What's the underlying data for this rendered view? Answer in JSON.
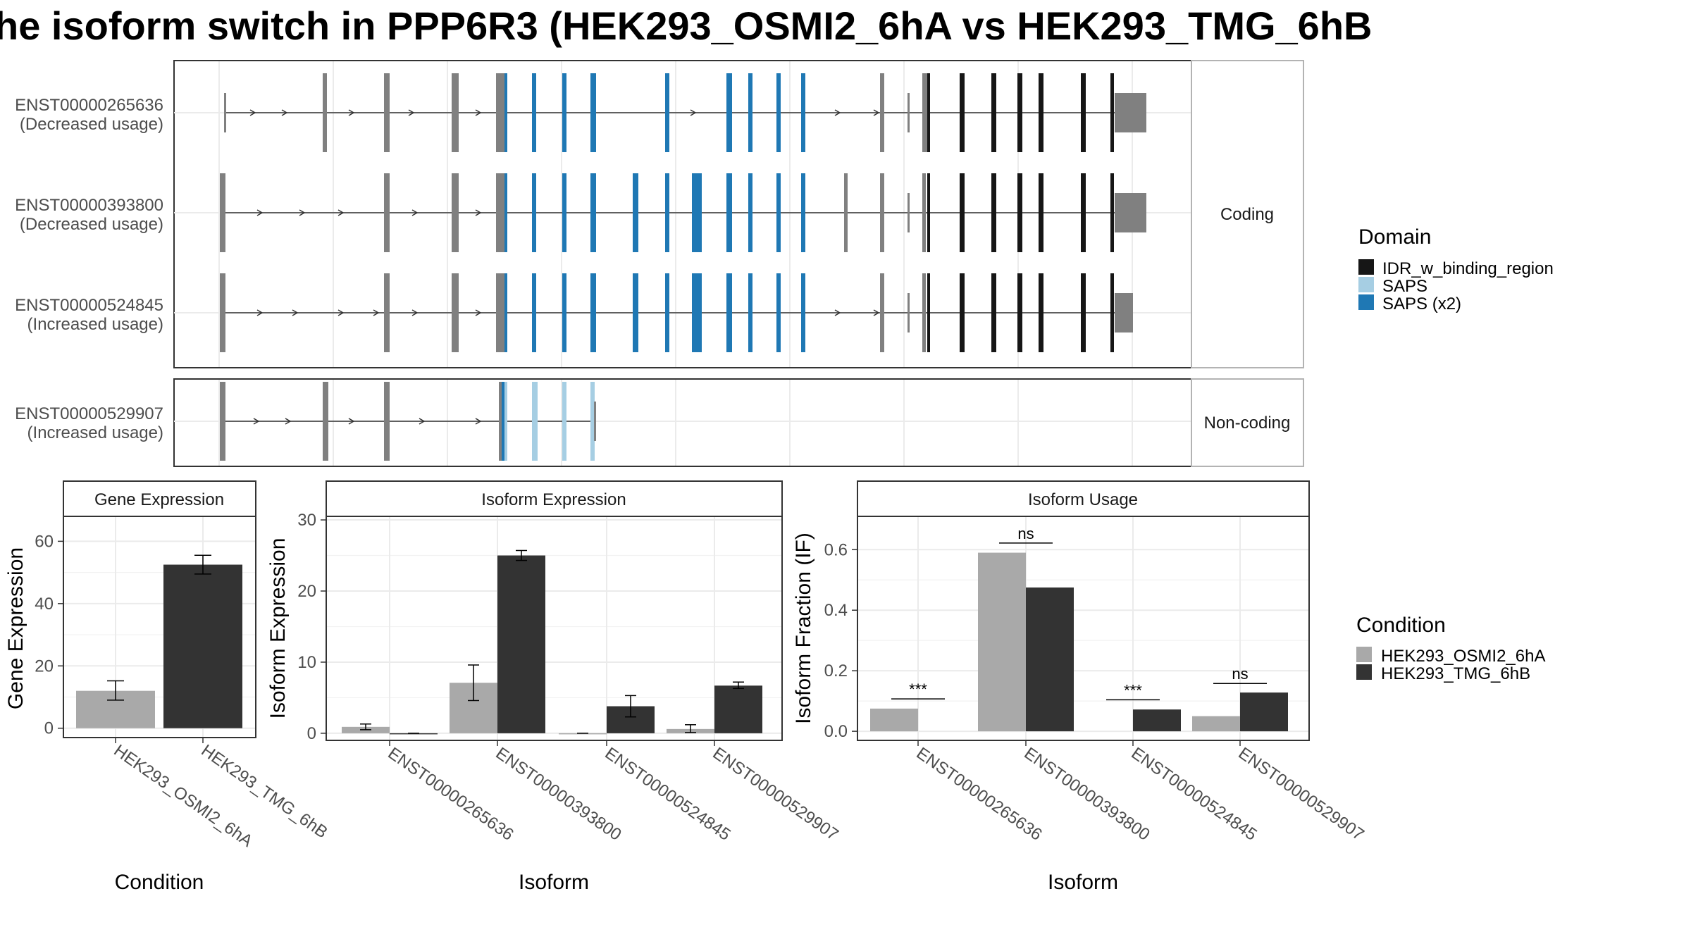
{
  "title": "he isoform switch in PPP6R3 (HEK293_OSMI2_6hA vs HEK293_TMG_6hB",
  "colors": {
    "idr": "#161616",
    "saps": "#a6cee3",
    "saps2": "#1f78b4",
    "exon_plain": "#808080",
    "cond_a": "#a9a9a9",
    "cond_b": "#333333"
  },
  "chart_data": [
    {
      "type": "gene-structure",
      "panel_title": "",
      "groups": [
        {
          "strip_label": "Coding",
          "transcripts": [
            {
              "id": "ENST00000265636",
              "note": "(Decreased usage)"
            },
            {
              "id": "ENST00000393800",
              "note": "(Decreased usage)"
            },
            {
              "id": "ENST00000524845",
              "note": "(Increased usage)"
            }
          ]
        },
        {
          "strip_label": "Non-coding",
          "transcripts": [
            {
              "id": "ENST00000529907",
              "note": "(Increased usage)"
            }
          ]
        }
      ],
      "legend": {
        "title": "Domain",
        "entries": [
          {
            "label": "IDR_w_binding_region",
            "color": "#161616"
          },
          {
            "label": "SAPS",
            "color": "#a6cee3"
          },
          {
            "label": "SAPS (x2)",
            "color": "#1f78b4"
          }
        ]
      }
    },
    {
      "type": "bar",
      "panel_title": "Gene Expression",
      "xlabel": "Condition",
      "ylabel": "Gene Expression",
      "ylim": [
        -3,
        68
      ],
      "yticks": [
        0,
        20,
        40,
        60
      ],
      "categories": [
        "HEK293_OSMI2_6hA",
        "HEK293_TMG_6hB"
      ],
      "values": [
        12,
        52.5
      ],
      "errors": [
        [
          9,
          15.2
        ],
        [
          49.5,
          55.5
        ]
      ]
    },
    {
      "type": "bar",
      "panel_title": "Isoform Expression",
      "xlabel": "Isoform",
      "ylabel": "Isoform Expression",
      "ylim": [
        -1,
        30.5
      ],
      "yticks": [
        0,
        10,
        20,
        30
      ],
      "categories": [
        "ENST00000265636",
        "ENST00000393800",
        "ENST00000524845",
        "ENST00000529907"
      ],
      "series": [
        {
          "condition": "HEK293_OSMI2_6hA",
          "values": [
            0.9,
            7.1,
            0,
            0.6
          ],
          "errors": [
            [
              0.5,
              1.3
            ],
            [
              4.6,
              9.6
            ],
            null,
            [
              0.1,
              1.2
            ]
          ]
        },
        {
          "condition": "HEK293_TMG_6hB",
          "values": [
            0,
            25,
            3.8,
            6.7
          ],
          "errors": [
            null,
            [
              24.3,
              25.7
            ],
            [
              2.3,
              5.3
            ],
            [
              6.3,
              7.2
            ]
          ]
        }
      ]
    },
    {
      "type": "bar",
      "panel_title": "Isoform Usage",
      "xlabel": "Isoform",
      "ylabel": "Isoform Fraction (IF)",
      "ylim": [
        -0.03,
        0.71
      ],
      "yticks": [
        0.0,
        0.2,
        0.4,
        0.6
      ],
      "ytick_labels": [
        "0.0",
        "0.2",
        "0.4",
        "0.6"
      ],
      "categories": [
        "ENST00000265636",
        "ENST00000393800",
        "ENST00000524845",
        "ENST00000529907"
      ],
      "series": [
        {
          "condition": "HEK293_OSMI2_6hA",
          "values": [
            0.075,
            0.59,
            0,
            0.05
          ]
        },
        {
          "condition": "HEK293_TMG_6hB",
          "values": [
            0,
            0.475,
            0.072,
            0.128
          ]
        }
      ],
      "significance": [
        {
          "label": "***",
          "y": 0.107
        },
        {
          "label": "ns",
          "y": 0.622
        },
        {
          "label": "***",
          "y": 0.104
        },
        {
          "label": "ns",
          "y": 0.158
        }
      ]
    }
  ],
  "legend_condition": {
    "title": "Condition",
    "entries": [
      {
        "label": "HEK293_OSMI2_6hA",
        "color": "#a9a9a9"
      },
      {
        "label": "HEK293_TMG_6hB",
        "color": "#333333"
      }
    ]
  }
}
